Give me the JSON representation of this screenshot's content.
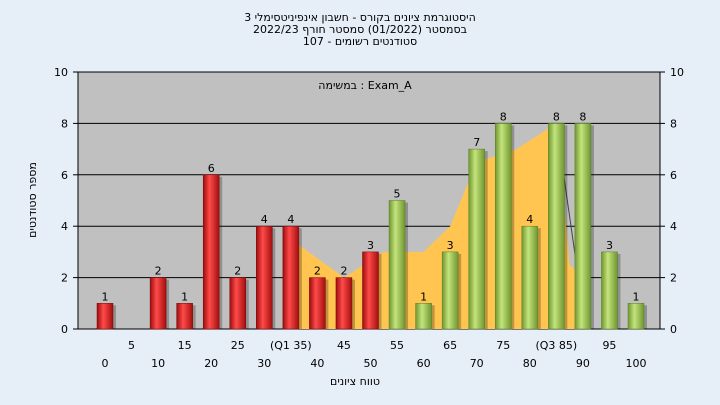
{
  "chart_data": {
    "type": "bar",
    "title_lines": [
      "היסטוגרמת ציונים בקורס - חשבון אינפיניטסימלי 3",
      "בסמסטר  (01/2022)  סמסטר חורף 2022/23",
      "סטודנטים רשומים - 107"
    ],
    "xlabel": "טווח ציונים",
    "ylabel": "מספר סטודנטים",
    "annotation": "במשימה : Exam_A",
    "ylim": [
      0,
      10
    ],
    "yticks": [
      "0",
      "2",
      "4",
      "6",
      "8",
      "10"
    ],
    "grid": true,
    "x_ticks_lower": [
      "0",
      "10",
      "20",
      "30",
      "40",
      "50",
      "60",
      "70",
      "80",
      "90",
      "100"
    ],
    "x_ticks_upper": [
      "5",
      "15",
      "25",
      "(Q1 35)",
      "45",
      "55",
      "65",
      "75",
      "(Q3 85)",
      "95"
    ],
    "bars": [
      {
        "x": 0,
        "value": 1,
        "label": "1",
        "color": "red"
      },
      {
        "x": 10,
        "value": 2,
        "label": "2",
        "color": "red"
      },
      {
        "x": 15,
        "value": 1,
        "label": "1",
        "color": "red"
      },
      {
        "x": 20,
        "value": 6,
        "label": "6",
        "color": "red"
      },
      {
        "x": 25,
        "value": 2,
        "label": "2",
        "color": "red"
      },
      {
        "x": 30,
        "value": 4,
        "label": "4",
        "color": "red"
      },
      {
        "x": 35,
        "value": 4,
        "label": "4",
        "color": "red"
      },
      {
        "x": 40,
        "value": 2,
        "label": "2",
        "color": "red"
      },
      {
        "x": 45,
        "value": 2,
        "label": "2",
        "color": "red"
      },
      {
        "x": 50,
        "value": 3,
        "label": "3",
        "color": "red"
      },
      {
        "x": 55,
        "value": 5,
        "label": "5",
        "color": "green"
      },
      {
        "x": 60,
        "value": 1,
        "label": "1",
        "color": "green"
      },
      {
        "x": 65,
        "value": 3,
        "label": "3",
        "color": "green"
      },
      {
        "x": 70,
        "value": 7,
        "label": "7",
        "color": "green"
      },
      {
        "x": 75,
        "value": 8,
        "label": "8",
        "color": "green"
      },
      {
        "x": 80,
        "value": 4,
        "label": "4",
        "color": "green"
      },
      {
        "x": 85,
        "value": 8,
        "label": "8",
        "color": "green"
      },
      {
        "x": 90,
        "value": 8,
        "label": "8",
        "color": "green"
      },
      {
        "x": 95,
        "value": 3,
        "label": "3",
        "color": "green"
      },
      {
        "x": 100,
        "value": 1,
        "label": "1",
        "color": "green"
      }
    ],
    "area": {
      "x": [
        35,
        45,
        52.5,
        60,
        65,
        70,
        77.5,
        85,
        87.5,
        90
      ],
      "y": [
        3.5,
        2,
        3,
        3,
        4,
        6.5,
        7,
        8,
        2.5,
        2
      ]
    },
    "colors": {
      "background": "#e6eef8",
      "plot_bg": "#c0c0c0",
      "gridline": "#000000",
      "area_fill": "#ffc550",
      "red_bar": "#dd1c1c",
      "green_bar": "#9bc34e"
    }
  }
}
